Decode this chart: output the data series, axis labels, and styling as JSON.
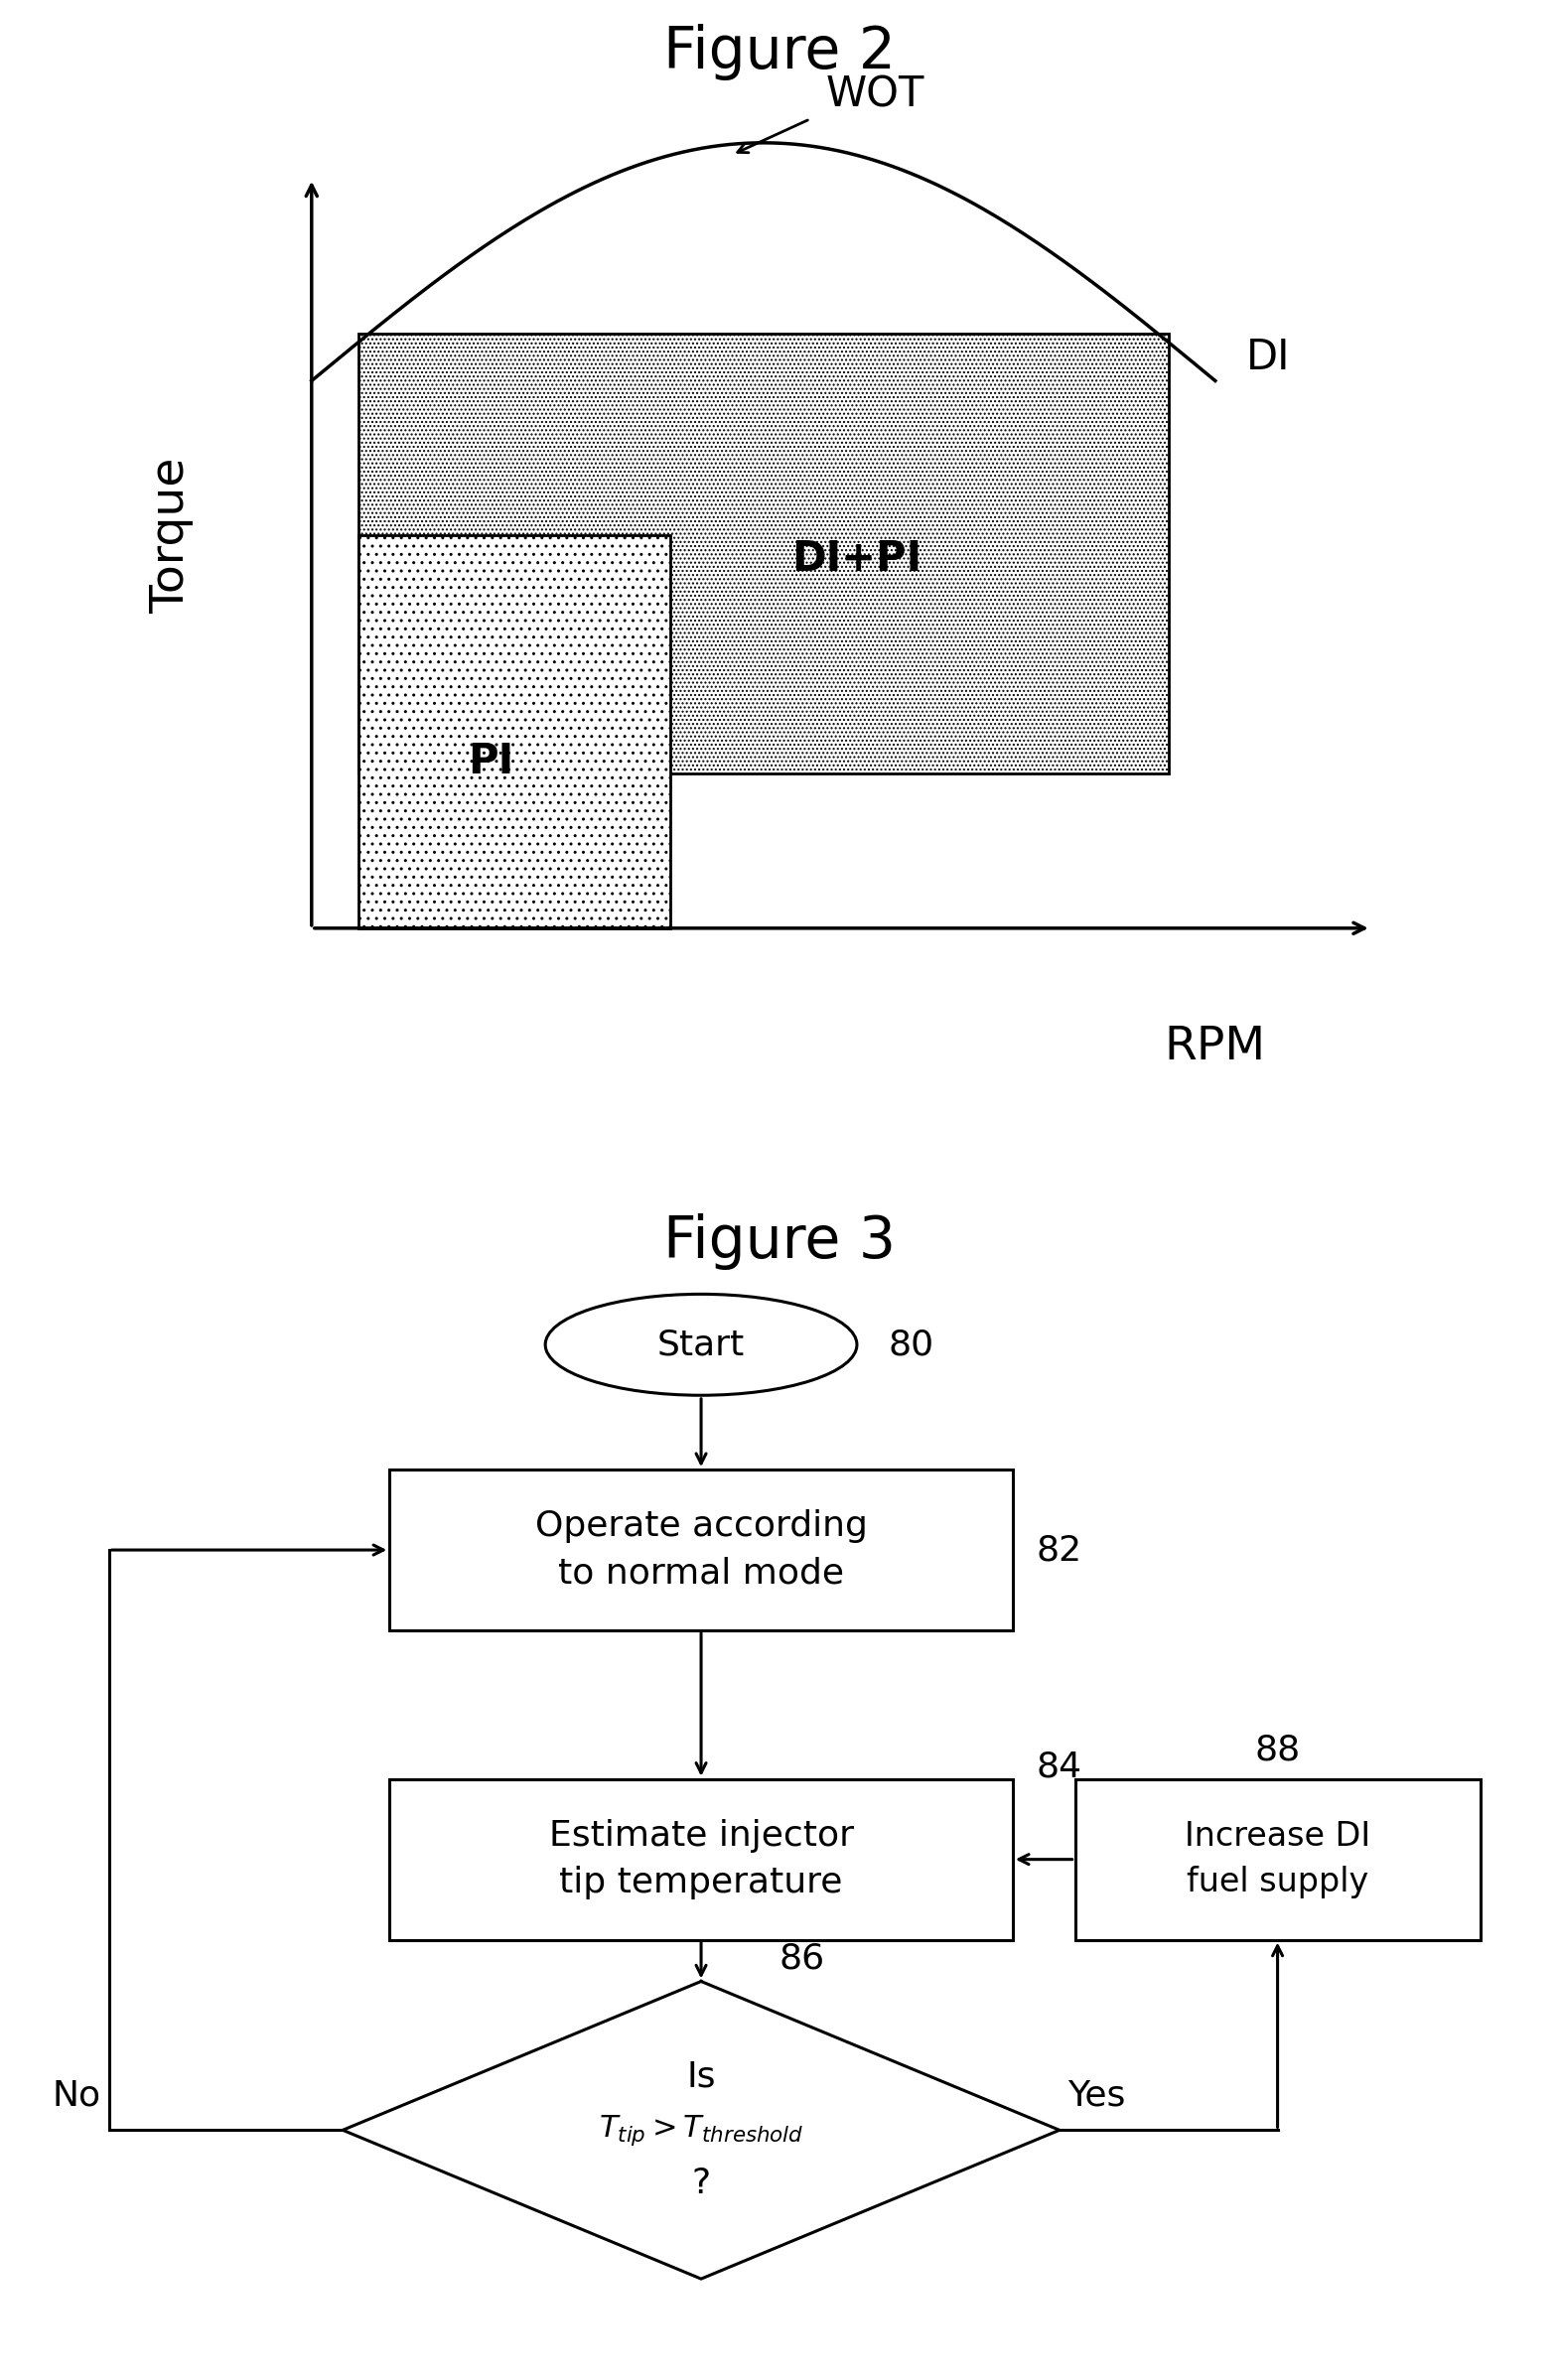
{
  "fig2_title": "Figure 2",
  "fig3_title": "Figure 3",
  "fig2_ylabel": "Torque",
  "fig2_xlabel": "RPM",
  "wot_label": "WOT",
  "di_label": "DI",
  "di_pi_label": "DI+PI",
  "pi_label": "PI",
  "node80": "80",
  "node82": "82",
  "node84": "84",
  "node86": "86",
  "node88": "88",
  "start_label": "Start",
  "box82_label": "Operate according\nto normal mode",
  "box84_label": "Estimate injector\ntip temperature",
  "box88_label": "Increase DI\nfuel supply",
  "diamond_line1": "Is",
  "diamond_line3": "?",
  "yes_label": "Yes",
  "no_label": "No",
  "bg_color": "#ffffff"
}
